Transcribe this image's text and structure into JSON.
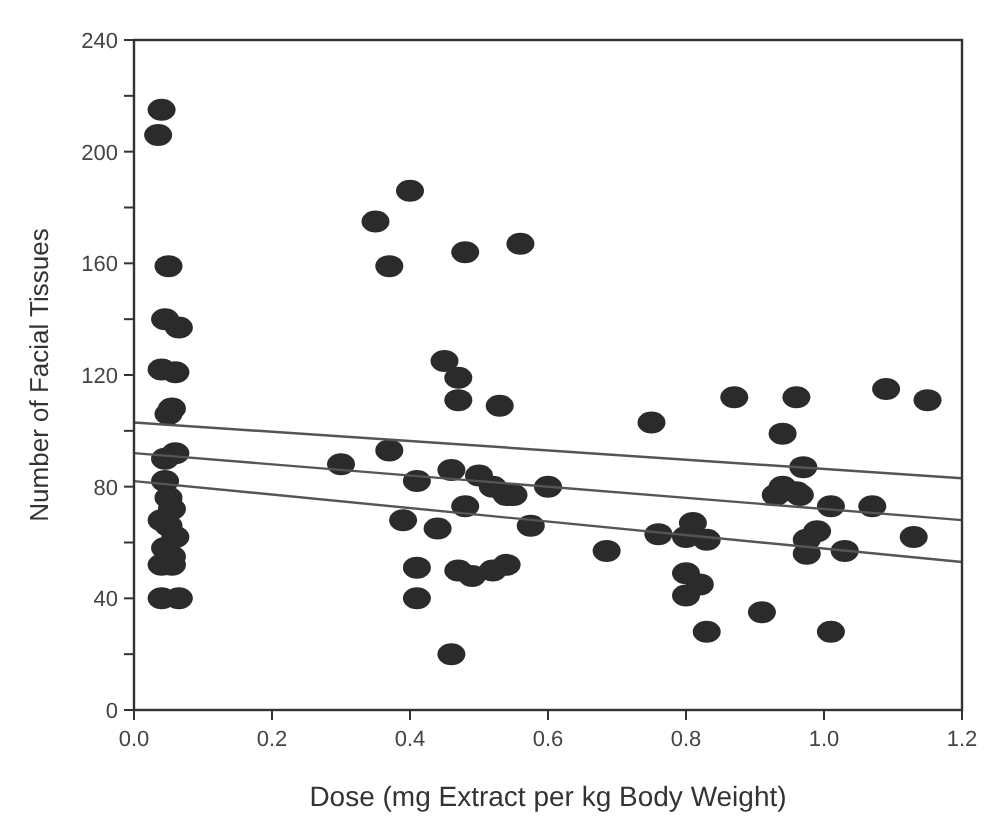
{
  "chart_data": {
    "type": "scatter",
    "xlabel": "Dose (mg Extract per kg Body Weight)",
    "ylabel": "Number of Facial Tissues",
    "xlim": [
      0,
      1.2
    ],
    "ylim": [
      0,
      240
    ],
    "xticks": [
      {
        "value": 0,
        "label": "0.0"
      },
      {
        "value": 0.2,
        "label": "0.2"
      },
      {
        "value": 0.4,
        "label": "0.4"
      },
      {
        "value": 0.6,
        "label": "0.6"
      },
      {
        "value": 0.8,
        "label": "0.8"
      },
      {
        "value": 1,
        "label": "1.0"
      },
      {
        "value": 1.2,
        "label": "1.2"
      }
    ],
    "yticks": [
      0,
      {
        "value": 20,
        "label": null
      },
      40,
      {
        "value": 60,
        "label": null
      },
      80,
      {
        "value": 100,
        "label": null
      },
      120,
      {
        "value": 140,
        "label": null
      },
      160,
      {
        "value": 180,
        "label": null
      },
      200,
      {
        "value": 220,
        "label": null
      },
      240
    ],
    "grid": false,
    "series": [
      {
        "marker": "circle",
        "color": "#2b2b2b",
        "x": [
          0.04,
          0.035,
          0.05,
          0.045,
          0.065,
          0.04,
          0.06,
          0.055,
          0.05,
          0.06,
          0.045,
          0.045,
          0.05,
          0.055,
          0.04,
          0.05,
          0.06,
          0.045,
          0.055,
          0.04,
          0.055,
          0.04,
          0.065,
          0.3,
          0.35,
          0.37,
          0.37,
          0.4,
          0.41,
          0.39,
          0.41,
          0.41,
          0.45,
          0.46,
          0.44,
          0.46,
          0.48,
          0.47,
          0.47,
          0.48,
          0.47,
          0.49,
          0.5,
          0.52,
          0.53,
          0.52,
          0.54,
          0.56,
          0.55,
          0.54,
          0.575,
          0.6,
          0.685,
          0.75,
          0.76,
          0.81,
          0.8,
          0.83,
          0.8,
          0.82,
          0.8,
          0.83,
          0.87,
          0.91,
          0.94,
          0.96,
          0.97,
          0.94,
          0.96,
          0.93,
          0.965,
          1.01,
          0.99,
          0.975,
          0.975,
          1.03,
          1.07,
          1.09,
          1.13,
          1.15,
          1.01
        ],
        "values": [
          215,
          206,
          159,
          140,
          137,
          122,
          121,
          108,
          106,
          92,
          90,
          82,
          76,
          72,
          68,
          66,
          62,
          58,
          55,
          52,
          52,
          40,
          40,
          88,
          175,
          159,
          93,
          186,
          82,
          68,
          51,
          40,
          125,
          86,
          65,
          20,
          164,
          119,
          111,
          73,
          50,
          48,
          84,
          80,
          109,
          50,
          52,
          167,
          77,
          77,
          66,
          80,
          57,
          103,
          63,
          67,
          62,
          61,
          49,
          45,
          41,
          28,
          112,
          35,
          99,
          112,
          87,
          80,
          78,
          77,
          77,
          73,
          64,
          61,
          56,
          57,
          73,
          115,
          62,
          111,
          28
        ]
      },
      {
        "type": "line",
        "marker": "none",
        "line_style": "solid",
        "color": "#555555",
        "x": [
          0,
          1.2
        ],
        "values": [
          103,
          83
        ]
      },
      {
        "type": "line",
        "marker": "none",
        "line_style": "solid",
        "color": "#555555",
        "x": [
          0,
          1.2
        ],
        "values": [
          92,
          68
        ]
      },
      {
        "type": "line",
        "marker": "none",
        "line_style": "solid",
        "color": "#555555",
        "x": [
          0,
          1.2
        ],
        "values": [
          82,
          53
        ]
      }
    ]
  }
}
